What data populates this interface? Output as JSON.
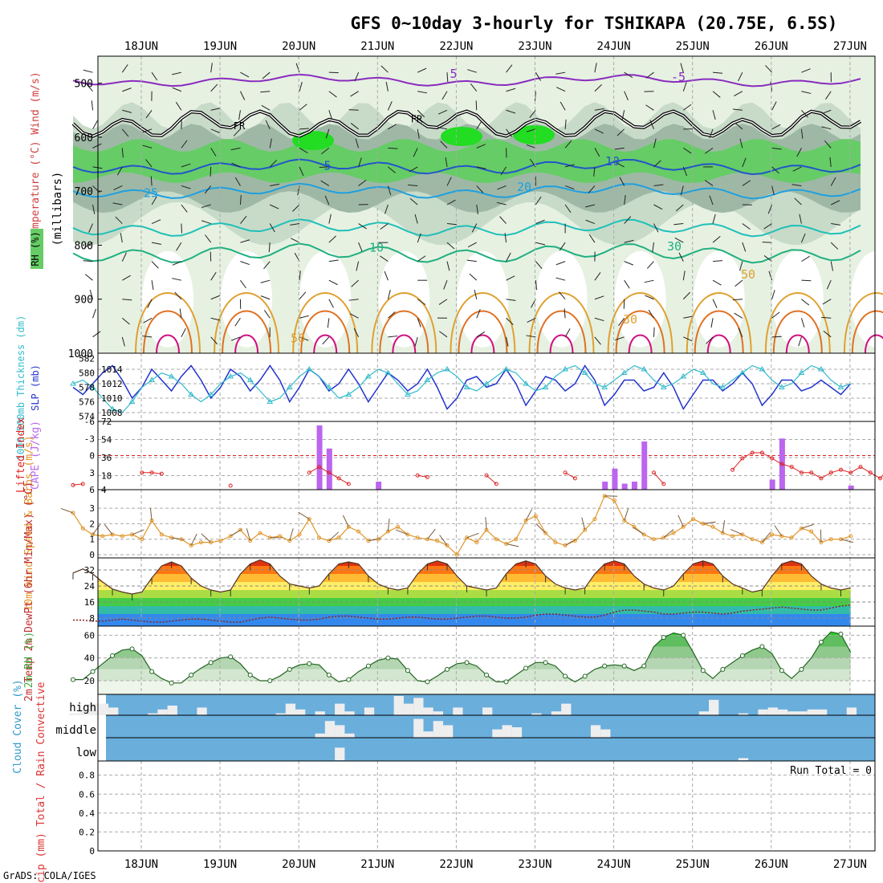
{
  "title": "GFS 0~10day 3-hourly for TSHIKAPA (20.75E, 6.5S)",
  "credit": "GrADS: COLA/IGES",
  "dates": [
    "18JUN",
    "19JUN",
    "20JUN",
    "21JUN",
    "22JUN",
    "23JUN",
    "24JUN",
    "25JUN",
    "26JUN",
    "27JUN"
  ],
  "colors": {
    "rh_dark": "#9fb8a6",
    "rh_mid": "#c8dbc9",
    "rh_light": "#e6f1e2",
    "rh_green": "#66cc66",
    "rh_bright": "#22dd22",
    "temp_purple": "#8a2bbf",
    "temp_blue": "#2255cc",
    "temp_lblue": "#1fa0e0",
    "temp_teal": "#20c0b8",
    "temp_green": "#20b080",
    "temp_orange": "#e0a030",
    "temp_dorange": "#e07020",
    "temp_magenta": "#d01080",
    "slp": "#2233cc",
    "thick": "#33bbcc",
    "li": "#dd2222",
    "cape": "#bb66ee",
    "wind": "#e0962a",
    "barb": "#7a5a3a",
    "cloud_bg": "#6aaedc",
    "cloud_fill": "#eeeeee",
    "rh2m": "#44aa44"
  },
  "chart_data": [
    {
      "type": "heatmap",
      "name": "upper-air",
      "ylabel": "(millibars)",
      "legend": [
        "RH (%)",
        "Temperature (°C)",
        "Wind (m/s)"
      ],
      "yticks": [
        500,
        600,
        700,
        800,
        900,
        1000
      ],
      "ylim": [
        1000,
        450
      ],
      "freezing_label": "FR",
      "contour_labels": [
        "5",
        "-5",
        "5",
        "10",
        "20",
        "25",
        "10",
        "30",
        "50",
        "30",
        "50"
      ]
    },
    {
      "type": "line",
      "name": "slp-thickness",
      "ylabel_left": "1000-500mb Thickness (dm)",
      "ylabel_right": "SLP (mb)",
      "left_ticks": [
        574,
        576,
        578,
        580,
        582
      ],
      "right_ticks": [
        1008,
        1010,
        1012,
        1014
      ],
      "series": [
        {
          "name": "SLP (mb)",
          "axis": "right",
          "values": [
            1011.5,
            1010.5,
            1012,
            1013.5,
            1014.5,
            1012.5,
            1010,
            1011.5,
            1014,
            1012.5,
            1011,
            1013,
            1014.5,
            1012.5,
            1010,
            1011.5,
            1014,
            1013,
            1011,
            1012.5,
            1014.5,
            1012.5,
            1009.5,
            1011.5,
            1014,
            1013,
            1011,
            1012,
            1014,
            1012,
            1009.5,
            1011.5,
            1013.5,
            1012.5,
            1011,
            1012,
            1014,
            1011.5,
            1008.5,
            1010,
            1012.5,
            1013,
            1011.5,
            1012,
            1014,
            1012,
            1009,
            1011,
            1013,
            1012.5,
            1011,
            1012,
            1014.5,
            1012.5,
            1009,
            1010.5,
            1012.5,
            1012.5,
            1011,
            1011.5,
            1013.5,
            1011.5,
            1008.5,
            1010.5,
            1012.5,
            1012.5,
            1011,
            1012,
            1013.5,
            1012,
            1009,
            1010.5,
            1012.5,
            1012.5,
            1011,
            1011.5,
            1012.5,
            1011.5,
            1010.5,
            1012
          ]
        },
        {
          "name": "Thickness (dm)",
          "axis": "left",
          "values": [
            578.5,
            579,
            578,
            576.5,
            575,
            574.5,
            576,
            578,
            579,
            580,
            579.5,
            578.5,
            577,
            576,
            577,
            578.5,
            579.5,
            580,
            579,
            577.5,
            576,
            576.5,
            578,
            579.5,
            580.5,
            579.5,
            578,
            576.5,
            577,
            578,
            579.5,
            580.5,
            580,
            578.5,
            577,
            577.5,
            579,
            580,
            580.5,
            579.5,
            578,
            577.5,
            578.5,
            579.5,
            580.5,
            580,
            578.5,
            577.5,
            578,
            579.5,
            580.5,
            581,
            580,
            578.5,
            578,
            579,
            580,
            581,
            580.5,
            579,
            578,
            578.5,
            579.5,
            580.5,
            580,
            578.5,
            578,
            579,
            580,
            581,
            580.5,
            579,
            578,
            578.5,
            580,
            581,
            580.5,
            579,
            578,
            578.5
          ]
        }
      ]
    },
    {
      "type": "bar",
      "name": "cape-li",
      "ylabel_left": "Lifted Index",
      "ylabel_right": "CAPE (J/kg)",
      "left_ticks": [
        6,
        3,
        0,
        -3,
        -6
      ],
      "right_ticks": [
        4,
        18,
        36,
        54,
        72
      ],
      "cape_x": [
        24,
        25,
        26,
        31,
        54,
        55,
        56,
        57,
        58,
        71,
        72,
        79
      ],
      "cape_values": [
        4,
        68,
        45,
        12,
        12,
        25,
        10,
        12,
        52,
        14,
        55,
        8
      ],
      "li_values": [
        5.2,
        5,
        null,
        null,
        null,
        null,
        null,
        3,
        3,
        3.2,
        null,
        null,
        null,
        null,
        null,
        null,
        5.3,
        null,
        null,
        null,
        null,
        null,
        null,
        null,
        3,
        2,
        3,
        4,
        5,
        null,
        null,
        null,
        null,
        null,
        null,
        3.5,
        3.8,
        null,
        null,
        null,
        null,
        null,
        3.5,
        5,
        null,
        null,
        null,
        null,
        null,
        null,
        3,
        4,
        null,
        null,
        null,
        null,
        null,
        null,
        null,
        3,
        5,
        null,
        null,
        null,
        null,
        null,
        null,
        2.5,
        0.5,
        -0.5,
        -0.5,
        0.5,
        1.5,
        2,
        3,
        3,
        4,
        3,
        2.5,
        3,
        2,
        3,
        4,
        2,
        5.3,
        null,
        null,
        null,
        null,
        null,
        null,
        5,
        3,
        -1,
        -1,
        0,
        0,
        1,
        2,
        3,
        2,
        0
      ]
    },
    {
      "type": "line",
      "name": "wind10m",
      "ylabel": "10m Wind Speed & Barbs (m/s)",
      "yticks": [
        0,
        1,
        2,
        3
      ],
      "ylim": [
        0,
        4
      ],
      "values": [
        2.7,
        1.7,
        1.3,
        1.2,
        1.3,
        1.2,
        1.3,
        1.0,
        2.2,
        1.3,
        1.1,
        1.0,
        0.6,
        0.8,
        0.8,
        0.9,
        1.2,
        1.6,
        0.9,
        1.4,
        1.1,
        1.2,
        0.9,
        1.3,
        2.3,
        1.1,
        0.9,
        1.1,
        1.8,
        1.5,
        0.9,
        1.0,
        1.5,
        1.8,
        1.3,
        1.1,
        1.0,
        0.9,
        0.6,
        0.0,
        1.1,
        0.8,
        1.6,
        1.0,
        0.7,
        1.0,
        2.2,
        2.5,
        1.4,
        0.8,
        0.6,
        0.9,
        1.6,
        2.3,
        3.8,
        3.5,
        2.2,
        1.8,
        1.3,
        1.0,
        1.1,
        1.4,
        1.8,
        2.3,
        2.0,
        1.8,
        1.4,
        1.2,
        1.3,
        1.0,
        0.8,
        1.3,
        1.2,
        1.1,
        1.7,
        1.5,
        0.8,
        1.0,
        1.0,
        1.2
      ]
    },
    {
      "type": "area",
      "name": "temp-dewpoint",
      "ylabel": "2m Temp 2m DewPt (6hr Min/Max) (°C)",
      "yticks": [
        8,
        16,
        24,
        32
      ],
      "ylim": [
        4,
        38
      ],
      "temp_values": [
        30.5,
        32.5,
        30,
        26,
        22.5,
        21,
        20,
        21,
        28,
        34,
        36,
        34,
        28,
        24,
        22,
        21,
        22,
        30,
        35,
        37,
        35,
        29,
        25,
        24,
        23,
        24,
        30,
        35,
        36,
        35,
        29,
        25,
        23,
        22,
        23,
        30,
        35,
        36.5,
        35,
        29,
        24,
        23,
        22,
        23,
        30,
        35,
        36.5,
        35,
        29,
        25,
        23,
        22,
        23,
        30,
        35,
        36.5,
        35,
        29,
        25,
        23,
        22,
        24,
        30,
        35,
        36.5,
        35,
        29,
        25,
        23,
        21,
        22,
        29,
        35,
        36.5,
        35,
        29,
        25,
        23,
        22,
        23
      ],
      "dew_values": [
        7,
        7,
        6.5,
        6.5,
        7,
        7.5,
        7,
        6.5,
        6,
        6,
        6.5,
        7,
        7.5,
        7.5,
        7,
        6.5,
        6,
        6,
        7,
        8,
        8.5,
        8,
        7.5,
        7,
        7,
        7.5,
        8.5,
        9,
        9,
        8.5,
        8,
        7.5,
        7.5,
        8,
        8.5,
        8.5,
        8,
        7.5,
        7.5,
        8,
        8.5,
        9,
        9,
        8.5,
        8,
        8,
        8.5,
        9.5,
        10,
        10,
        9.5,
        9,
        8.5,
        8.5,
        9.5,
        11,
        12,
        12,
        11.5,
        11,
        10,
        10,
        10.5,
        11,
        11,
        10.5,
        10,
        10.5,
        11.5,
        12,
        12.5,
        13,
        13.5,
        13,
        12.5,
        12,
        12,
        13,
        14,
        14.5
      ]
    },
    {
      "type": "area",
      "name": "rh2m",
      "ylabel": "2m RH (%)",
      "yticks": [
        20,
        40,
        60
      ],
      "ylim": [
        8,
        68
      ],
      "values": [
        21,
        21,
        28,
        35,
        42,
        47,
        48,
        42,
        28,
        22,
        18,
        18,
        25,
        31,
        36,
        40,
        41,
        35,
        25,
        20,
        20,
        24,
        30,
        34,
        35,
        34,
        25,
        19,
        21,
        28,
        33,
        38,
        40,
        39,
        29,
        20,
        19,
        24,
        30,
        35,
        36,
        33,
        25,
        19,
        19,
        25,
        31,
        36,
        36,
        33,
        24,
        19,
        24,
        30,
        33,
        34,
        33,
        29,
        33,
        50,
        58,
        62,
        60,
        45,
        29,
        22,
        30,
        36,
        42,
        47,
        50,
        44,
        29,
        22,
        30,
        40,
        54,
        63,
        61,
        45
      ]
    },
    {
      "type": "bar",
      "name": "cloud-cover",
      "ylabel": "Cloud Cover (%)",
      "rows": [
        "high",
        "middle",
        "low"
      ],
      "high_values": [
        10,
        30,
        60,
        60,
        40,
        0,
        0,
        0,
        10,
        30,
        50,
        0,
        0,
        40,
        0,
        0,
        0,
        0,
        0,
        0,
        0,
        10,
        60,
        30,
        0,
        20,
        0,
        60,
        20,
        0,
        40,
        0,
        0,
        100,
        60,
        90,
        40,
        20,
        0,
        40,
        0,
        0,
        40,
        0,
        0,
        0,
        0,
        10,
        0,
        20,
        60,
        0,
        0,
        0,
        0,
        0,
        0,
        0,
        0,
        0,
        0,
        0,
        0,
        0,
        20,
        80,
        0,
        0,
        10,
        0,
        30,
        40,
        30,
        20,
        20,
        30,
        30,
        0,
        0,
        40
      ],
      "middle_values": [
        0,
        0,
        0,
        0,
        0,
        0,
        0,
        0,
        0,
        0,
        0,
        0,
        0,
        0,
        0,
        0,
        0,
        0,
        0,
        0,
        0,
        0,
        0,
        0,
        0,
        20,
        80,
        60,
        20,
        0,
        0,
        0,
        0,
        0,
        0,
        90,
        30,
        80,
        60,
        0,
        0,
        0,
        0,
        40,
        60,
        50,
        0,
        0,
        0,
        0,
        0,
        0,
        0,
        60,
        40,
        0,
        0,
        0,
        0,
        0,
        0,
        0,
        0,
        0,
        0,
        0,
        0,
        0,
        0,
        0,
        0,
        0,
        0,
        0,
        0,
        0,
        0,
        0,
        0,
        0
      ],
      "low_values": [
        0,
        0,
        0,
        0,
        0,
        0,
        0,
        0,
        0,
        0,
        0,
        0,
        0,
        0,
        0,
        0,
        0,
        0,
        0,
        0,
        0,
        0,
        0,
        0,
        0,
        0,
        0,
        60,
        0,
        0,
        0,
        0,
        0,
        0,
        0,
        0,
        0,
        0,
        0,
        0,
        0,
        0,
        0,
        0,
        0,
        0,
        0,
        0,
        0,
        0,
        0,
        0,
        0,
        0,
        0,
        0,
        0,
        0,
        0,
        0,
        0,
        0,
        0,
        0,
        0,
        0,
        0,
        0,
        10,
        0,
        0,
        0,
        0,
        0,
        0,
        0,
        0,
        0,
        0,
        0
      ]
    },
    {
      "type": "bar",
      "name": "precip",
      "ylabel": "3hr Precip (mm) Total / Rain Convective",
      "yticks": [
        "0",
        "0.2",
        "0.4",
        "0.6",
        "0.8"
      ],
      "ylim": [
        0,
        0.95
      ],
      "run_total_label": "Run Total = 0",
      "values": []
    }
  ]
}
